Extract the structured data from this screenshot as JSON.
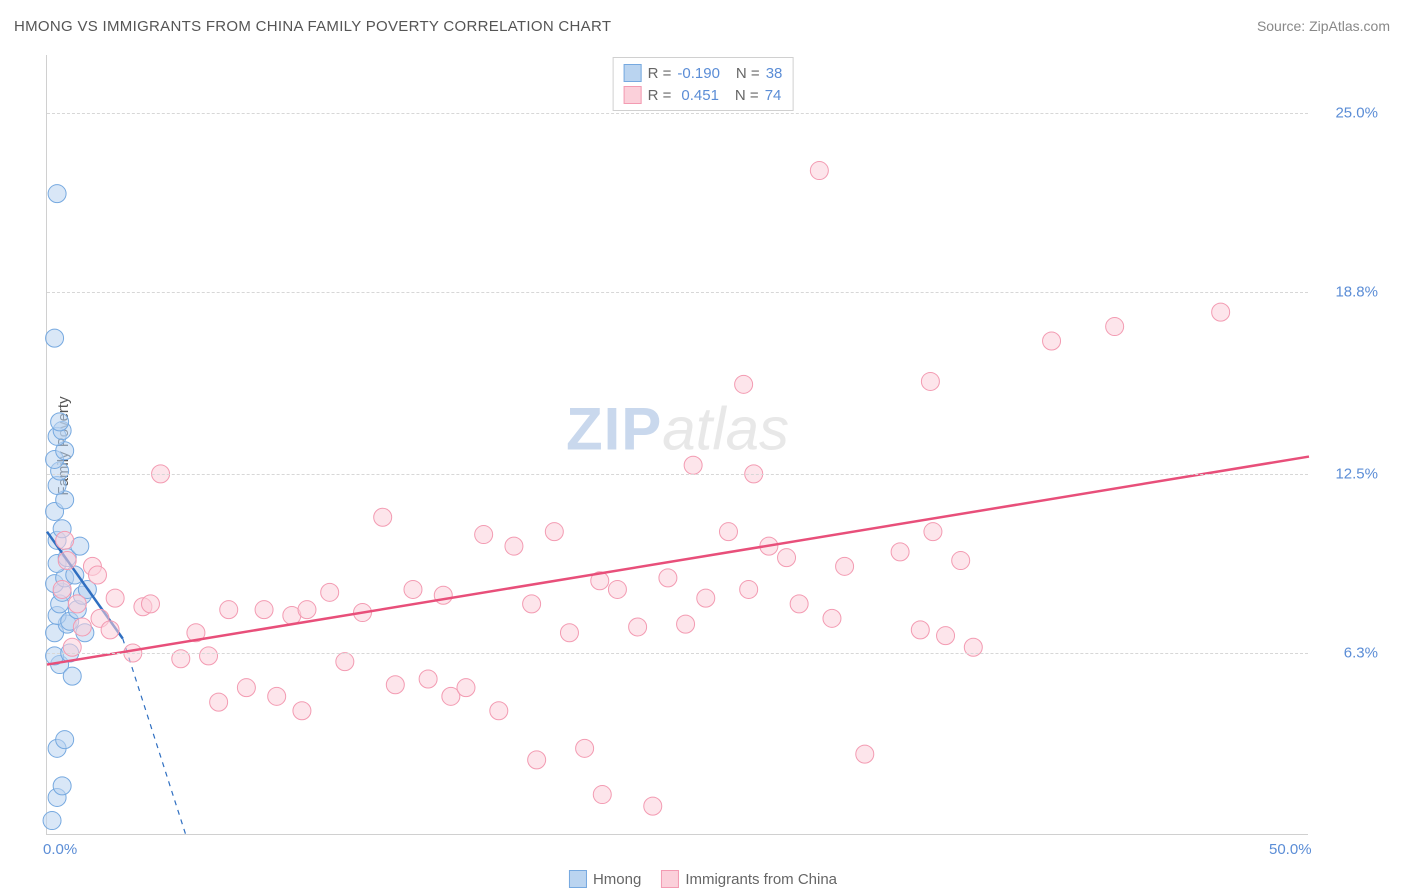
{
  "title": "HMONG VS IMMIGRANTS FROM CHINA FAMILY POVERTY CORRELATION CHART",
  "source": "Source: ZipAtlas.com",
  "y_axis_label": "Family Poverty",
  "watermark": {
    "zip": "ZIP",
    "atlas": "atlas"
  },
  "colors": {
    "blue_fill": "#bad4f0",
    "blue_stroke": "#76a9e0",
    "blue_line": "#2f6fc1",
    "pink_fill": "#fbd0da",
    "pink_stroke": "#f39bb2",
    "pink_line": "#e84f7a",
    "tick_label": "#5b8dd6",
    "title_color": "#555555",
    "grid": "#d7d7d7"
  },
  "chart": {
    "type": "scatter",
    "xlim": [
      0,
      50
    ],
    "ylim": [
      0,
      27
    ],
    "y_ticks": [
      {
        "value": 6.3,
        "label": "6.3%"
      },
      {
        "value": 12.5,
        "label": "12.5%"
      },
      {
        "value": 18.8,
        "label": "18.8%"
      },
      {
        "value": 25.0,
        "label": "25.0%"
      }
    ],
    "x_ticks": [
      {
        "value": 0,
        "label": "0.0%"
      },
      {
        "value": 50,
        "label": "50.0%"
      }
    ],
    "marker_radius": 9,
    "marker_opacity": 0.55,
    "line_width": 2.5
  },
  "series": [
    {
      "name": "Hmong",
      "color_key": "blue",
      "R": "-0.190",
      "N": "38",
      "trend": {
        "x1": 0,
        "y1": 10.5,
        "x2": 3.0,
        "y2": 6.8,
        "dash_ext_x2": 5.5,
        "dash_ext_y2": 0
      },
      "points": [
        [
          0.2,
          0.5
        ],
        [
          0.4,
          1.3
        ],
        [
          0.6,
          1.7
        ],
        [
          0.4,
          3.0
        ],
        [
          0.7,
          3.3
        ],
        [
          0.5,
          5.9
        ],
        [
          0.3,
          6.2
        ],
        [
          0.3,
          7.0
        ],
        [
          0.8,
          7.3
        ],
        [
          0.4,
          7.6
        ],
        [
          0.9,
          7.4
        ],
        [
          0.5,
          8.0
        ],
        [
          0.6,
          8.4
        ],
        [
          0.3,
          8.7
        ],
        [
          0.7,
          8.9
        ],
        [
          0.4,
          9.4
        ],
        [
          0.8,
          9.6
        ],
        [
          0.4,
          10.2
        ],
        [
          0.6,
          10.6
        ],
        [
          0.3,
          11.2
        ],
        [
          0.7,
          11.6
        ],
        [
          0.4,
          12.1
        ],
        [
          0.5,
          12.6
        ],
        [
          0.3,
          13.0
        ],
        [
          0.7,
          13.3
        ],
        [
          0.4,
          13.8
        ],
        [
          0.6,
          14.0
        ],
        [
          0.5,
          14.3
        ],
        [
          0.3,
          17.2
        ],
        [
          0.4,
          22.2
        ],
        [
          1.2,
          7.8
        ],
        [
          1.4,
          8.3
        ],
        [
          1.5,
          7.0
        ],
        [
          1.1,
          9.0
        ],
        [
          1.3,
          10.0
        ],
        [
          1.6,
          8.5
        ],
        [
          0.9,
          6.3
        ],
        [
          1.0,
          5.5
        ]
      ]
    },
    {
      "name": "Immigrants from China",
      "color_key": "pink",
      "R": "0.451",
      "N": "74",
      "trend": {
        "x1": 0,
        "y1": 5.9,
        "x2": 50,
        "y2": 13.1
      },
      "points": [
        [
          0.6,
          8.5
        ],
        [
          0.8,
          9.5
        ],
        [
          0.7,
          10.2
        ],
        [
          1.2,
          8.0
        ],
        [
          1.4,
          7.2
        ],
        [
          1.8,
          9.3
        ],
        [
          2.1,
          7.5
        ],
        [
          2.5,
          7.1
        ],
        [
          2.7,
          8.2
        ],
        [
          3.4,
          6.3
        ],
        [
          3.8,
          7.9
        ],
        [
          4.1,
          8.0
        ],
        [
          4.5,
          12.5
        ],
        [
          5.3,
          6.1
        ],
        [
          5.9,
          7.0
        ],
        [
          6.4,
          6.2
        ],
        [
          6.8,
          4.6
        ],
        [
          7.2,
          7.8
        ],
        [
          7.9,
          5.1
        ],
        [
          8.6,
          7.8
        ],
        [
          9.1,
          4.8
        ],
        [
          9.7,
          7.6
        ],
        [
          10.3,
          7.8
        ],
        [
          10.1,
          4.3
        ],
        [
          11.2,
          8.4
        ],
        [
          11.8,
          6.0
        ],
        [
          12.5,
          7.7
        ],
        [
          13.3,
          11.0
        ],
        [
          13.8,
          5.2
        ],
        [
          14.5,
          8.5
        ],
        [
          15.1,
          5.4
        ],
        [
          15.7,
          8.3
        ],
        [
          16.0,
          4.8
        ],
        [
          16.6,
          5.1
        ],
        [
          17.3,
          10.4
        ],
        [
          17.9,
          4.3
        ],
        [
          18.5,
          10.0
        ],
        [
          19.2,
          8.0
        ],
        [
          19.4,
          2.6
        ],
        [
          20.1,
          10.5
        ],
        [
          20.7,
          7.0
        ],
        [
          21.3,
          3.0
        ],
        [
          21.9,
          8.8
        ],
        [
          22.0,
          1.4
        ],
        [
          22.6,
          8.5
        ],
        [
          23.4,
          7.2
        ],
        [
          24.0,
          1.0
        ],
        [
          24.6,
          8.9
        ],
        [
          25.3,
          7.3
        ],
        [
          25.6,
          12.8
        ],
        [
          26.1,
          8.2
        ],
        [
          27.0,
          10.5
        ],
        [
          27.6,
          15.6
        ],
        [
          27.8,
          8.5
        ],
        [
          28.0,
          12.5
        ],
        [
          28.6,
          10.0
        ],
        [
          29.3,
          9.6
        ],
        [
          29.8,
          8.0
        ],
        [
          30.6,
          23.0
        ],
        [
          31.1,
          7.5
        ],
        [
          31.6,
          9.3
        ],
        [
          32.4,
          2.8
        ],
        [
          33.8,
          9.8
        ],
        [
          34.6,
          7.1
        ],
        [
          35.0,
          15.7
        ],
        [
          35.1,
          10.5
        ],
        [
          35.6,
          6.9
        ],
        [
          36.2,
          9.5
        ],
        [
          36.7,
          6.5
        ],
        [
          39.8,
          17.1
        ],
        [
          42.3,
          17.6
        ],
        [
          46.5,
          18.1
        ],
        [
          1.0,
          6.5
        ],
        [
          2.0,
          9.0
        ]
      ]
    }
  ],
  "legend": {
    "items": [
      {
        "label": "Hmong",
        "color_key": "blue"
      },
      {
        "label": "Immigrants from China",
        "color_key": "pink"
      }
    ]
  }
}
